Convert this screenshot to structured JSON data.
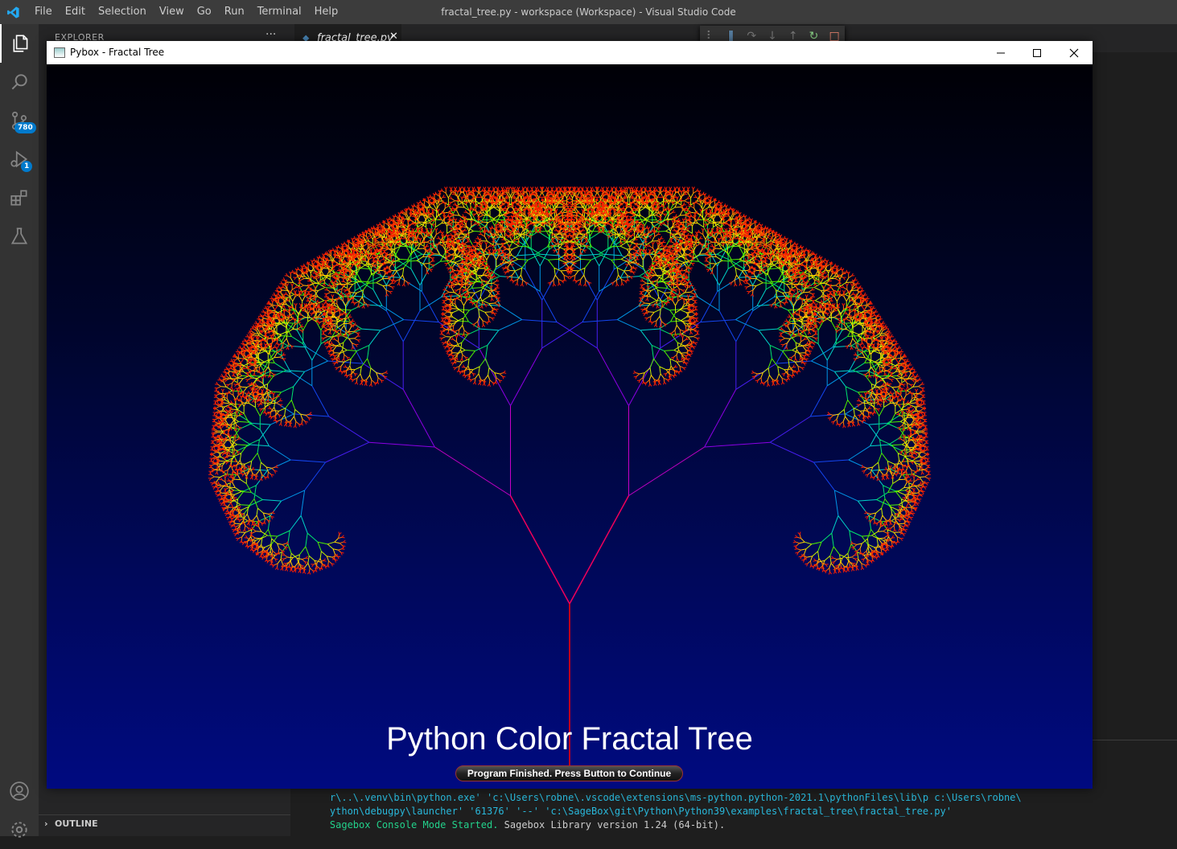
{
  "vscode": {
    "window_title": "fractal_tree.py - workspace (Workspace) - Visual Studio Code",
    "menu": [
      "File",
      "Edit",
      "Selection",
      "View",
      "Go",
      "Run",
      "Terminal",
      "Help"
    ],
    "activity_bar": {
      "source_control_badge": "780",
      "run_debug_badge": "1"
    },
    "sidebar": {
      "explorer_title": "EXPLORER",
      "more_actions": "···",
      "outline_label": "OUTLINE"
    },
    "tab": {
      "label": "fractal_tree.py",
      "close": "✕"
    },
    "terminal": {
      "lines": [
        [
          "r\\..\\.venv\\bin\\python.exe' 'c:\\Users\\robne\\.vscode\\extensions\\ms-python.python-2021.1\\pythonFiles\\lib\\p c:\\Users\\robne\\"
        ],
        [
          "ython\\debugpy\\launcher' '61376' '--' 'c:\\SageBox\\git\\Python\\Python39\\examples\\fractal_tree\\fractal_tree.py'"
        ],
        [
          "Sagebox Console Mode Started.",
          " Sagebox Library version 1.24 (64-bit)."
        ]
      ]
    }
  },
  "pybox": {
    "title": "Pybox - Fractal Tree",
    "canvas_title": "Python Color Fractal Tree",
    "continue_button": "Program Finished. Press Button to Continue"
  },
  "colors": {
    "vscode_accent": "#007acc",
    "trunk": "#ff0000",
    "leaf_tips": "#ff2000",
    "canvas_top": "#000006",
    "canvas_bottom": "#000a80"
  }
}
